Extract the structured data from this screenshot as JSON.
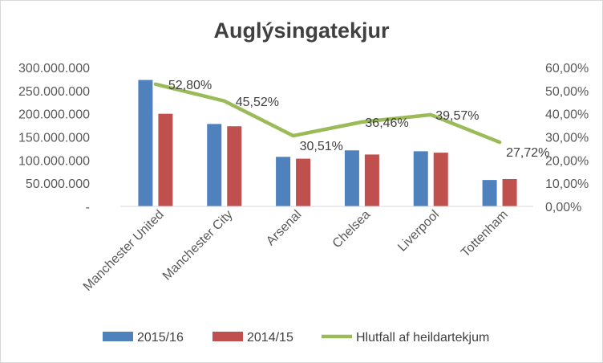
{
  "chart_data": {
    "type": "bar",
    "title": "Auglýsingatekjur",
    "categories": [
      "Manchester United",
      "Manchester City",
      "Arsenal",
      "Chelsea",
      "Liverpool",
      "Tottenham"
    ],
    "series": [
      {
        "name": "2015/16",
        "axis": "left",
        "kind": "bar",
        "color": "#4f81bd",
        "values": [
          273000000,
          178000000,
          107000000,
          121000000,
          119000000,
          57000000
        ]
      },
      {
        "name": "2014/15",
        "axis": "left",
        "kind": "bar",
        "color": "#c0504d",
        "values": [
          200000000,
          173000000,
          103000000,
          112000000,
          116000000,
          59000000
        ]
      },
      {
        "name": "Hlutfall af heildartekjum",
        "axis": "right",
        "kind": "line",
        "color": "#9bbb59",
        "values": [
          52.8,
          45.52,
          30.51,
          36.46,
          39.57,
          27.72
        ],
        "data_labels": [
          "52,80%",
          "45,52%",
          "30,51%",
          "36,46%",
          "39,57%",
          "27,72%"
        ]
      }
    ],
    "y_left": {
      "min": 0,
      "max": 300000000,
      "ticks": [
        0,
        50000000,
        100000000,
        150000000,
        200000000,
        250000000,
        300000000
      ],
      "tick_labels": [
        "-",
        "50.000.000",
        "100.000.000",
        "150.000.000",
        "200.000.000",
        "250.000.000",
        "300.000.000"
      ]
    },
    "y_right": {
      "min": 0,
      "max": 60,
      "ticks": [
        0,
        10,
        20,
        30,
        40,
        50,
        60
      ],
      "tick_labels": [
        "0,00%",
        "10,00%",
        "20,00%",
        "30,00%",
        "40,00%",
        "50,00%",
        "60,00%"
      ]
    },
    "grid": false,
    "legend_position": "bottom",
    "colors": {
      "axis": "#d9d9d9",
      "border": "#d9d9d9"
    }
  }
}
